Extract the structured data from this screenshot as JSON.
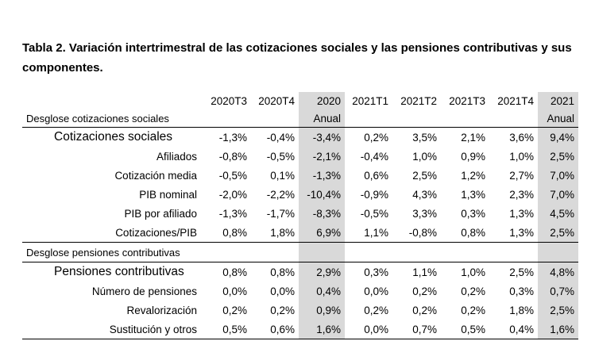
{
  "title": "Tabla 2. Variación intertrimestral de las cotizaciones sociales y las pensiones contributivas y sus componentes.",
  "columns": [
    [
      "2020T3",
      ""
    ],
    [
      "2020T4",
      ""
    ],
    [
      "2020",
      "Anual"
    ],
    [
      "2021T1",
      ""
    ],
    [
      "2021T2",
      ""
    ],
    [
      "2021T3",
      ""
    ],
    [
      "2021T4",
      ""
    ],
    [
      "2021",
      "Anual"
    ]
  ],
  "section1": {
    "label": "Desglose cotizaciones sociales",
    "rows": [
      {
        "label": "Cotizaciones sociales",
        "values": [
          "-1,3%",
          "-0,4%",
          "-3,4%",
          "0,2%",
          "3,5%",
          "2,1%",
          "3,6%",
          "9,4%"
        ]
      },
      {
        "label": "Afiliados",
        "values": [
          "-0,8%",
          "-0,5%",
          "-2,1%",
          "-0,4%",
          "1,0%",
          "0,9%",
          "1,0%",
          "2,5%"
        ]
      },
      {
        "label": "Cotización media",
        "values": [
          "-0,5%",
          "0,1%",
          "-1,3%",
          "0,6%",
          "2,5%",
          "1,2%",
          "2,7%",
          "7,0%"
        ]
      },
      {
        "label": "PIB nominal",
        "values": [
          "-2,0%",
          "-2,2%",
          "-10,4%",
          "-0,9%",
          "4,3%",
          "1,3%",
          "2,3%",
          "7,0%"
        ]
      },
      {
        "label": "PIB por afiliado",
        "values": [
          "-1,3%",
          "-1,7%",
          "-8,3%",
          "-0,5%",
          "3,3%",
          "0,3%",
          "1,3%",
          "4,5%"
        ]
      },
      {
        "label": "Cotizaciones/PIB",
        "values": [
          "0,8%",
          "1,8%",
          "6,9%",
          "1,1%",
          "-0,8%",
          "0,8%",
          "1,3%",
          "2,5%"
        ]
      }
    ]
  },
  "section2": {
    "label": "Desglose pensiones contributivas",
    "rows": [
      {
        "label": "Pensiones contributivas",
        "values": [
          "0,8%",
          "0,8%",
          "2,9%",
          "0,3%",
          "1,1%",
          "1,0%",
          "2,5%",
          "4,8%"
        ]
      },
      {
        "label": "Número de pensiones",
        "values": [
          "0,0%",
          "0,0%",
          "0,4%",
          "0,0%",
          "0,2%",
          "0,2%",
          "0,3%",
          "0,7%"
        ]
      },
      {
        "label": "Revalorización",
        "values": [
          "0,2%",
          "0,2%",
          "0,9%",
          "0,2%",
          "0,2%",
          "0,2%",
          "1,8%",
          "2,5%"
        ]
      },
      {
        "label": "Sustitución y otros",
        "values": [
          "0,5%",
          "0,6%",
          "1,6%",
          "0,0%",
          "0,7%",
          "0,5%",
          "0,4%",
          "1,6%"
        ]
      }
    ]
  }
}
